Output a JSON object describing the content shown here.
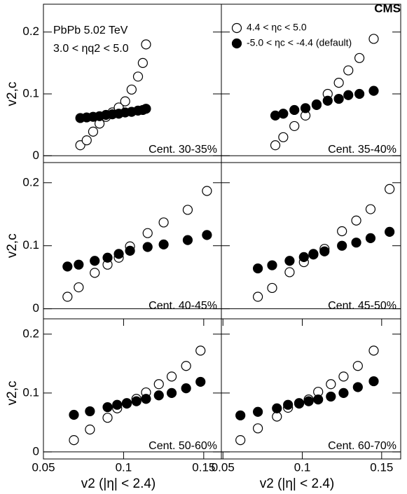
{
  "label": "CMS",
  "chart_data": [
    {
      "type": "scatter",
      "annotation": "Cent. 30-35%",
      "x": [
        0.073,
        0.077,
        0.081,
        0.085,
        0.089,
        0.093,
        0.097,
        0.101,
        0.105,
        0.109,
        0.112,
        0.114
      ],
      "series": [
        {
          "color": "#000000",
          "marker": "open",
          "values": [
            0.017,
            0.025,
            0.039,
            0.052,
            0.063,
            0.07,
            0.078,
            0.088,
            0.107,
            0.128,
            0.15,
            0.18
          ]
        },
        {
          "color": "#000000",
          "marker": "filled",
          "values": [
            0.061,
            0.062,
            0.063,
            0.064,
            0.066,
            0.067,
            0.068,
            0.07,
            0.071,
            0.073,
            0.074,
            0.076
          ]
        }
      ],
      "xlim": [
        0.05,
        0.161
      ],
      "ylim": [
        -0.011,
        0.245
      ],
      "yticks": [
        0,
        0.1,
        0.2
      ],
      "ylabel": "v2,c",
      "texts": [
        "PbPb 5.02 TeV",
        "3.0 < ηq2 < 5.0"
      ]
    },
    {
      "type": "scatter",
      "annotation": "Cent. 35-40%",
      "x": [
        0.083,
        0.088,
        0.095,
        0.102,
        0.109,
        0.116,
        0.123,
        0.129,
        0.136,
        0.145
      ],
      "series": [
        {
          "name": "4.4 < ηc < 5.0",
          "color": "#000000",
          "marker": "open",
          "values": [
            0.017,
            0.03,
            0.048,
            0.065,
            0.082,
            0.1,
            0.118,
            0.138,
            0.158,
            0.189
          ]
        },
        {
          "name": "-5.0 < ηc < -4.4 (default)",
          "color": "#000000",
          "marker": "filled",
          "values": [
            0.065,
            0.068,
            0.074,
            0.077,
            0.083,
            0.089,
            0.092,
            0.098,
            0.1,
            0.105
          ]
        }
      ],
      "xlim": [
        0.049,
        0.162
      ],
      "ylim": [
        -0.011,
        0.245
      ],
      "yticks": [
        0,
        0.1,
        0.2
      ],
      "legend": "top-left"
    },
    {
      "type": "scatter",
      "annotation": "Cent. 40-45%",
      "x": [
        0.065,
        0.072,
        0.082,
        0.09,
        0.097,
        0.104,
        0.115,
        0.125,
        0.14,
        0.152
      ],
      "series": [
        {
          "color": "#000000",
          "marker": "open",
          "values": [
            0.019,
            0.034,
            0.057,
            0.07,
            0.081,
            0.099,
            0.12,
            0.137,
            0.157,
            0.187
          ]
        },
        {
          "color": "#000000",
          "marker": "filled",
          "values": [
            0.067,
            0.07,
            0.076,
            0.081,
            0.087,
            0.092,
            0.098,
            0.102,
            0.109,
            0.117
          ]
        }
      ],
      "xlim": [
        0.05,
        0.161
      ],
      "ylim": [
        -0.016,
        0.232
      ],
      "yticks": [
        0,
        0.1,
        0.2
      ],
      "ylabel": "v2,c"
    },
    {
      "type": "scatter",
      "annotation": "Cent. 45-50%",
      "x": [
        0.072,
        0.081,
        0.092,
        0.101,
        0.107,
        0.114,
        0.125,
        0.134,
        0.143,
        0.155
      ],
      "series": [
        {
          "color": "#000000",
          "marker": "open",
          "values": [
            0.019,
            0.033,
            0.058,
            0.074,
            0.086,
            0.095,
            0.123,
            0.14,
            0.158,
            0.19
          ]
        },
        {
          "color": "#000000",
          "marker": "filled",
          "values": [
            0.064,
            0.069,
            0.076,
            0.082,
            0.087,
            0.091,
            0.1,
            0.105,
            0.112,
            0.122
          ]
        }
      ],
      "xlim": [
        0.049,
        0.162
      ],
      "ylim": [
        -0.016,
        0.232
      ],
      "yticks": [
        0,
        0.1,
        0.2
      ]
    },
    {
      "type": "scatter",
      "annotation": "Cent. 50-60%",
      "x": [
        0.069,
        0.079,
        0.09,
        0.096,
        0.102,
        0.108,
        0.114,
        0.122,
        0.13,
        0.139,
        0.148
      ],
      "series": [
        {
          "color": "#000000",
          "marker": "open",
          "values": [
            0.02,
            0.038,
            0.058,
            0.074,
            0.082,
            0.09,
            0.101,
            0.115,
            0.128,
            0.146,
            0.172
          ]
        },
        {
          "color": "#000000",
          "marker": "filled",
          "values": [
            0.063,
            0.069,
            0.076,
            0.08,
            0.083,
            0.086,
            0.09,
            0.096,
            0.1,
            0.108,
            0.119
          ]
        }
      ],
      "xlim": [
        0.05,
        0.161
      ],
      "ylim": [
        -0.012,
        0.226
      ],
      "yticks": [
        0,
        0.1,
        0.2
      ],
      "xticks": [
        0.05,
        0.1,
        0.15
      ],
      "ylabel": "v2,c",
      "xlabel": "v2 (|η| < 2.4)"
    },
    {
      "type": "scatter",
      "annotation": "Cent. 60-70%",
      "x": [
        0.061,
        0.072,
        0.084,
        0.091,
        0.098,
        0.104,
        0.11,
        0.118,
        0.126,
        0.135,
        0.145
      ],
      "series": [
        {
          "color": "#000000",
          "marker": "open",
          "values": [
            0.02,
            0.04,
            0.06,
            0.075,
            0.082,
            0.089,
            0.102,
            0.115,
            0.128,
            0.146,
            0.172
          ]
        },
        {
          "color": "#000000",
          "marker": "filled",
          "values": [
            0.062,
            0.068,
            0.074,
            0.08,
            0.083,
            0.086,
            0.089,
            0.094,
            0.1,
            0.11,
            0.12
          ]
        }
      ],
      "xlim": [
        0.049,
        0.162
      ],
      "ylim": [
        -0.012,
        0.226
      ],
      "yticks": [
        0,
        0.1,
        0.2
      ],
      "xticks": [
        0.05,
        0.1,
        0.15
      ],
      "xlabel": "v2 (|η| < 2.4)"
    }
  ]
}
